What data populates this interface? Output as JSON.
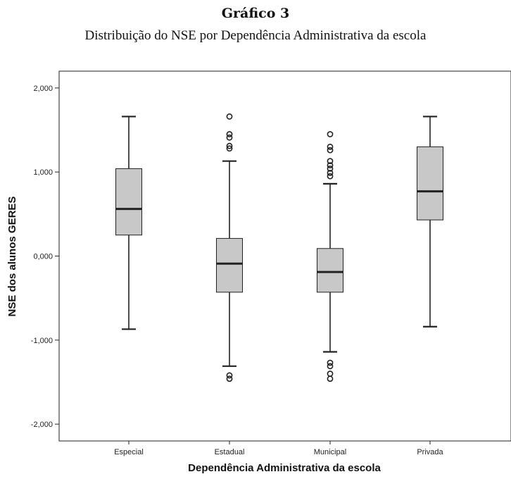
{
  "figure": {
    "title": "Gráfico 3",
    "subtitle": "Distribuição do NSE por Dependência Administrativa da escola"
  },
  "chart_data": {
    "type": "boxplot",
    "xlabel": "Dependência Administrativa da escola",
    "ylabel": "NSE dos alunos GERES",
    "ylim": [
      -2.2,
      2.2
    ],
    "yticks": [
      2,
      1,
      0,
      -1,
      -2
    ],
    "ytick_labels": [
      "2,000",
      "1,000",
      "0,000",
      "-1,000",
      "-2,000"
    ],
    "grid": false,
    "colors": {
      "box_fill": "#c8c8c8",
      "stroke": "#222222"
    },
    "categories": [
      "Especial",
      "Estadual",
      "Municipal",
      "Privada"
    ],
    "boxes": [
      {
        "category": "Especial",
        "min": -0.87,
        "q1": 0.25,
        "median": 0.56,
        "q3": 1.04,
        "max": 1.66,
        "outliers": []
      },
      {
        "category": "Estadual",
        "min": -1.31,
        "q1": -0.43,
        "median": -0.09,
        "q3": 0.21,
        "max": 1.13,
        "outliers": [
          1.66,
          1.45,
          1.41,
          1.31,
          1.28,
          -1.42,
          -1.46
        ]
      },
      {
        "category": "Municipal",
        "min": -1.14,
        "q1": -0.43,
        "median": -0.19,
        "q3": 0.09,
        "max": 0.86,
        "outliers": [
          1.45,
          1.3,
          1.26,
          1.13,
          1.08,
          1.04,
          0.99,
          0.95,
          -1.27,
          -1.31,
          -1.4,
          -1.46
        ]
      },
      {
        "category": "Privada",
        "min": -0.84,
        "q1": 0.43,
        "median": 0.77,
        "q3": 1.3,
        "max": 1.66,
        "outliers": []
      }
    ]
  }
}
